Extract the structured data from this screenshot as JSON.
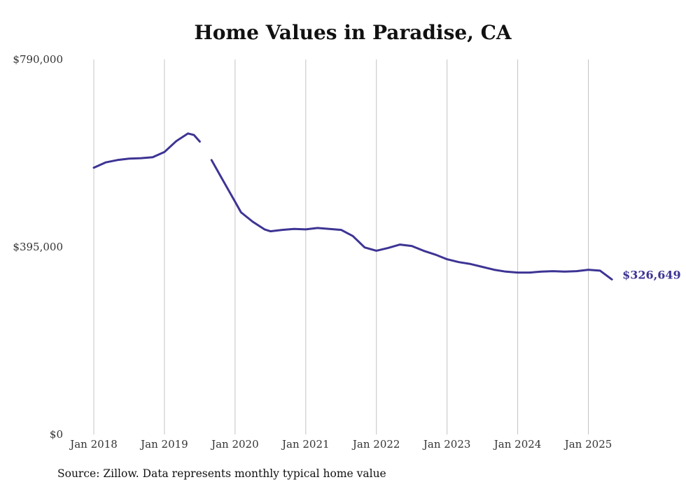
{
  "chart_data": {
    "type": "line",
    "title": "Home Values in Paradise, CA",
    "xlabel": "",
    "ylabel": "",
    "source": "Source: Zillow. Data represents monthly typical home value",
    "ylim": [
      0,
      790000
    ],
    "yticks": [
      {
        "value": 0,
        "label": "$0"
      },
      {
        "value": 395000,
        "label": "$395,000"
      },
      {
        "value": 790000,
        "label": "$790,000"
      }
    ],
    "xticks": [
      {
        "x": "2018-01",
        "label": "Jan 2018"
      },
      {
        "x": "2019-01",
        "label": "Jan 2019"
      },
      {
        "x": "2020-01",
        "label": "Jan 2020"
      },
      {
        "x": "2021-01",
        "label": "Jan 2021"
      },
      {
        "x": "2022-01",
        "label": "Jan 2022"
      },
      {
        "x": "2023-01",
        "label": "Jan 2023"
      },
      {
        "x": "2024-01",
        "label": "Jan 2024"
      },
      {
        "x": "2025-01",
        "label": "Jan 2025"
      }
    ],
    "grid": {
      "vertical": true,
      "horizontal": false
    },
    "line_color": "#3d3494",
    "end_label": "$326,649",
    "series": [
      {
        "segments": [
          [
            {
              "x": "2018-01",
              "y": 562000
            },
            {
              "x": "2018-03",
              "y": 573000
            },
            {
              "x": "2018-05",
              "y": 578000
            },
            {
              "x": "2018-07",
              "y": 581000
            },
            {
              "x": "2018-09",
              "y": 582000
            },
            {
              "x": "2018-11",
              "y": 584000
            },
            {
              "x": "2019-01",
              "y": 595000
            },
            {
              "x": "2019-03",
              "y": 618000
            },
            {
              "x": "2019-05",
              "y": 634000
            },
            {
              "x": "2019-06",
              "y": 631000
            },
            {
              "x": "2019-07",
              "y": 617000
            }
          ],
          [
            {
              "x": "2019-09",
              "y": 578000
            },
            {
              "x": "2019-11",
              "y": 534000
            },
            {
              "x": "2020-01",
              "y": 490000
            },
            {
              "x": "2020-02",
              "y": 468000
            },
            {
              "x": "2020-04",
              "y": 448000
            },
            {
              "x": "2020-06",
              "y": 432000
            },
            {
              "x": "2020-07",
              "y": 428000
            },
            {
              "x": "2020-09",
              "y": 431000
            },
            {
              "x": "2020-11",
              "y": 433000
            },
            {
              "x": "2021-01",
              "y": 432000
            },
            {
              "x": "2021-03",
              "y": 435000
            },
            {
              "x": "2021-05",
              "y": 433000
            },
            {
              "x": "2021-07",
              "y": 431000
            },
            {
              "x": "2021-09",
              "y": 418000
            },
            {
              "x": "2021-11",
              "y": 394000
            },
            {
              "x": "2022-01",
              "y": 387000
            },
            {
              "x": "2022-03",
              "y": 393000
            },
            {
              "x": "2022-05",
              "y": 400000
            },
            {
              "x": "2022-07",
              "y": 397000
            },
            {
              "x": "2022-09",
              "y": 387000
            },
            {
              "x": "2022-11",
              "y": 379000
            },
            {
              "x": "2023-01",
              "y": 369000
            },
            {
              "x": "2023-03",
              "y": 363000
            },
            {
              "x": "2023-05",
              "y": 359000
            },
            {
              "x": "2023-07",
              "y": 353000
            },
            {
              "x": "2023-09",
              "y": 347000
            },
            {
              "x": "2023-11",
              "y": 343000
            },
            {
              "x": "2024-01",
              "y": 341000
            },
            {
              "x": "2024-03",
              "y": 341000
            },
            {
              "x": "2024-05",
              "y": 343000
            },
            {
              "x": "2024-07",
              "y": 344000
            },
            {
              "x": "2024-09",
              "y": 343000
            },
            {
              "x": "2024-11",
              "y": 344000
            },
            {
              "x": "2025-01",
              "y": 347000
            },
            {
              "x": "2025-03",
              "y": 345000
            },
            {
              "x": "2025-05",
              "y": 326649
            }
          ]
        ]
      }
    ]
  }
}
